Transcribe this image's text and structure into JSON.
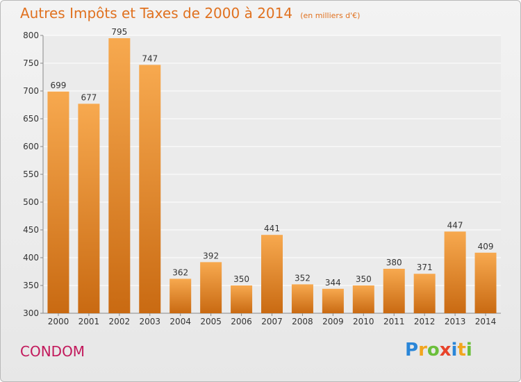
{
  "header": {
    "title": "Autres Impôts et Taxes de 2000 à 2014",
    "subtitle": "(en milliers d'€)"
  },
  "footer": {
    "commune": "CONDOM",
    "brand_letters": [
      "P",
      "r",
      "o",
      "x",
      "i",
      "t",
      "i"
    ],
    "brand_colors": [
      "#2a86d8",
      "#f2a51e",
      "#6bbf3b",
      "#e8432a",
      "#2a86d8",
      "#f2a51e",
      "#6bbf3b"
    ]
  },
  "chart_data": {
    "type": "bar",
    "categories": [
      "2000",
      "2001",
      "2002",
      "2003",
      "2004",
      "2005",
      "2006",
      "2007",
      "2008",
      "2009",
      "2010",
      "2011",
      "2012",
      "2013",
      "2014"
    ],
    "values": [
      699,
      677,
      795,
      747,
      362,
      392,
      350,
      441,
      352,
      344,
      350,
      380,
      371,
      447,
      409
    ],
    "ylim": [
      300,
      800
    ],
    "yticks": [
      300,
      350,
      400,
      450,
      500,
      550,
      600,
      650,
      700,
      750,
      800
    ],
    "grid": true,
    "bar_color_light": "#f7a94f",
    "bar_color_dark": "#c96a12"
  }
}
